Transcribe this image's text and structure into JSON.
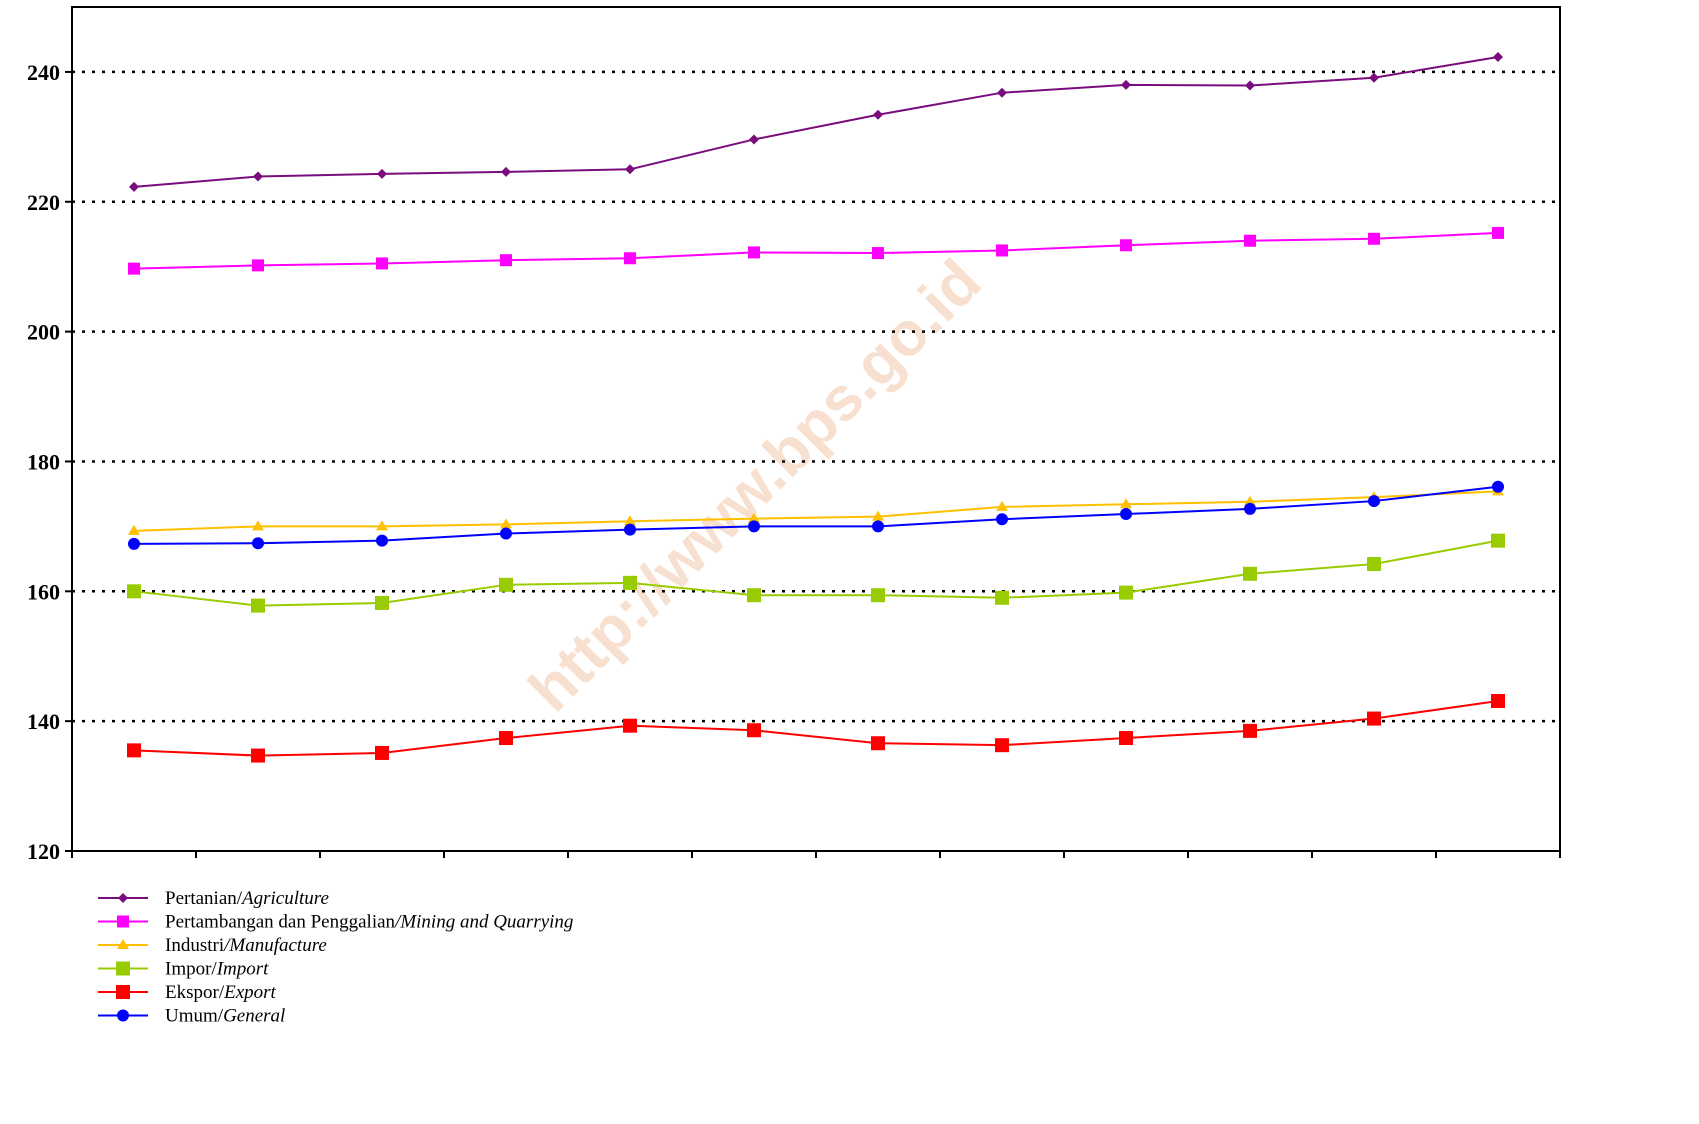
{
  "chart_data": {
    "type": "line",
    "title": "",
    "xlabel": "",
    "ylabel": "",
    "ylim": [
      120,
      250
    ],
    "yticks": [
      120,
      140,
      160,
      180,
      200,
      220,
      240
    ],
    "grid": "horizontal dotted",
    "legend_position": "bottom-left",
    "x": [
      1,
      2,
      3,
      4,
      5,
      6,
      7,
      8,
      9,
      10,
      11,
      12
    ],
    "series": [
      {
        "name": "Pertanian/",
        "name_italic": "Agriculture",
        "color": "#7B0C7E",
        "marker": "diamond",
        "values": [
          222.3,
          223.9,
          224.3,
          224.6,
          225.0,
          229.6,
          233.4,
          236.8,
          238.0,
          237.9,
          239.1,
          242.3
        ]
      },
      {
        "name": "Pertambangan dan Penggalian",
        "name_italic": "/Mining and Quarrying",
        "color": "#FF00FF",
        "marker": "square",
        "values": [
          209.7,
          210.2,
          210.5,
          211.0,
          211.3,
          212.2,
          212.1,
          212.5,
          213.3,
          214.0,
          214.3,
          215.2
        ]
      },
      {
        "name": "Industri",
        "name_italic": "/Manufacture",
        "color": "#FFC000",
        "marker": "triangle",
        "values": [
          169.3,
          170.0,
          170.0,
          170.3,
          170.8,
          171.2,
          171.5,
          173.0,
          173.4,
          173.8,
          174.5,
          175.4
        ]
      },
      {
        "name": "Impor/",
        "name_italic": "Import",
        "color": "#99CC00",
        "marker": "square-large",
        "values": [
          160.0,
          157.8,
          158.2,
          161.0,
          161.3,
          159.4,
          159.4,
          159.0,
          159.8,
          162.7,
          164.2,
          167.8
        ]
      },
      {
        "name": "Ekspor/",
        "name_italic": "Export",
        "color": "#FF0000",
        "marker": "square-large",
        "values": [
          135.5,
          134.7,
          135.1,
          137.4,
          139.3,
          138.6,
          136.6,
          136.3,
          137.4,
          138.5,
          140.4,
          143.1
        ]
      },
      {
        "name": "Umum/",
        "name_italic": "General",
        "color": "#0000FF",
        "marker": "circle",
        "values": [
          167.3,
          167.4,
          167.8,
          168.9,
          169.5,
          170.0,
          170.0,
          171.1,
          171.9,
          172.7,
          173.9,
          176.1
        ]
      }
    ]
  },
  "watermark": "http://www.bps.go.id"
}
